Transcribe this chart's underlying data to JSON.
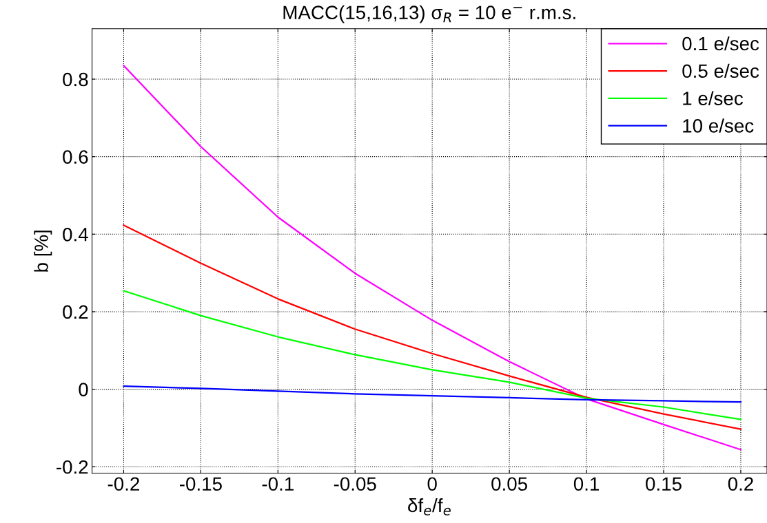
{
  "chart_data": {
    "type": "line",
    "title": "MACC(15,16,13) σ$_{R}$ = 10 e$^{−}$ r.m.s.",
    "xlabel": "δf$_{e}$/f$_{e}$",
    "ylabel": "b [%]",
    "x": [
      -0.2,
      -0.15,
      -0.1,
      -0.05,
      0,
      0.05,
      0.1,
      0.15,
      0.2
    ],
    "series": [
      {
        "name": "0.1 e/sec",
        "color": "#ff00ff",
        "values": [
          0.835,
          0.626,
          0.444,
          0.299,
          0.178,
          0.071,
          -0.025,
          -0.091,
          -0.156
        ]
      },
      {
        "name": "0.5 e/sec",
        "color": "#ff0000",
        "values": [
          0.423,
          0.325,
          0.233,
          0.155,
          0.092,
          0.034,
          -0.021,
          -0.064,
          -0.103
        ]
      },
      {
        "name": "1 e/sec",
        "color": "#00ff00",
        "values": [
          0.254,
          0.19,
          0.135,
          0.089,
          0.05,
          0.018,
          -0.023,
          -0.046,
          -0.078
        ]
      },
      {
        "name": "10 e/sec",
        "color": "#0000ff",
        "values": [
          0.008,
          0.002,
          -0.005,
          -0.012,
          -0.017,
          -0.022,
          -0.027,
          -0.03,
          -0.033
        ]
      }
    ],
    "xlim": [
      -0.2205,
      0.217
    ],
    "ylim": [
      -0.217,
      0.93
    ],
    "xticks": [
      -0.2,
      -0.15,
      -0.1,
      -0.05,
      0,
      0.05,
      0.1,
      0.15,
      0.2
    ],
    "yticks": [
      -0.2,
      0,
      0.2,
      0.4,
      0.6,
      0.8
    ],
    "grid": true,
    "legend": "top right",
    "line_style": "solid",
    "marker": "none"
  }
}
